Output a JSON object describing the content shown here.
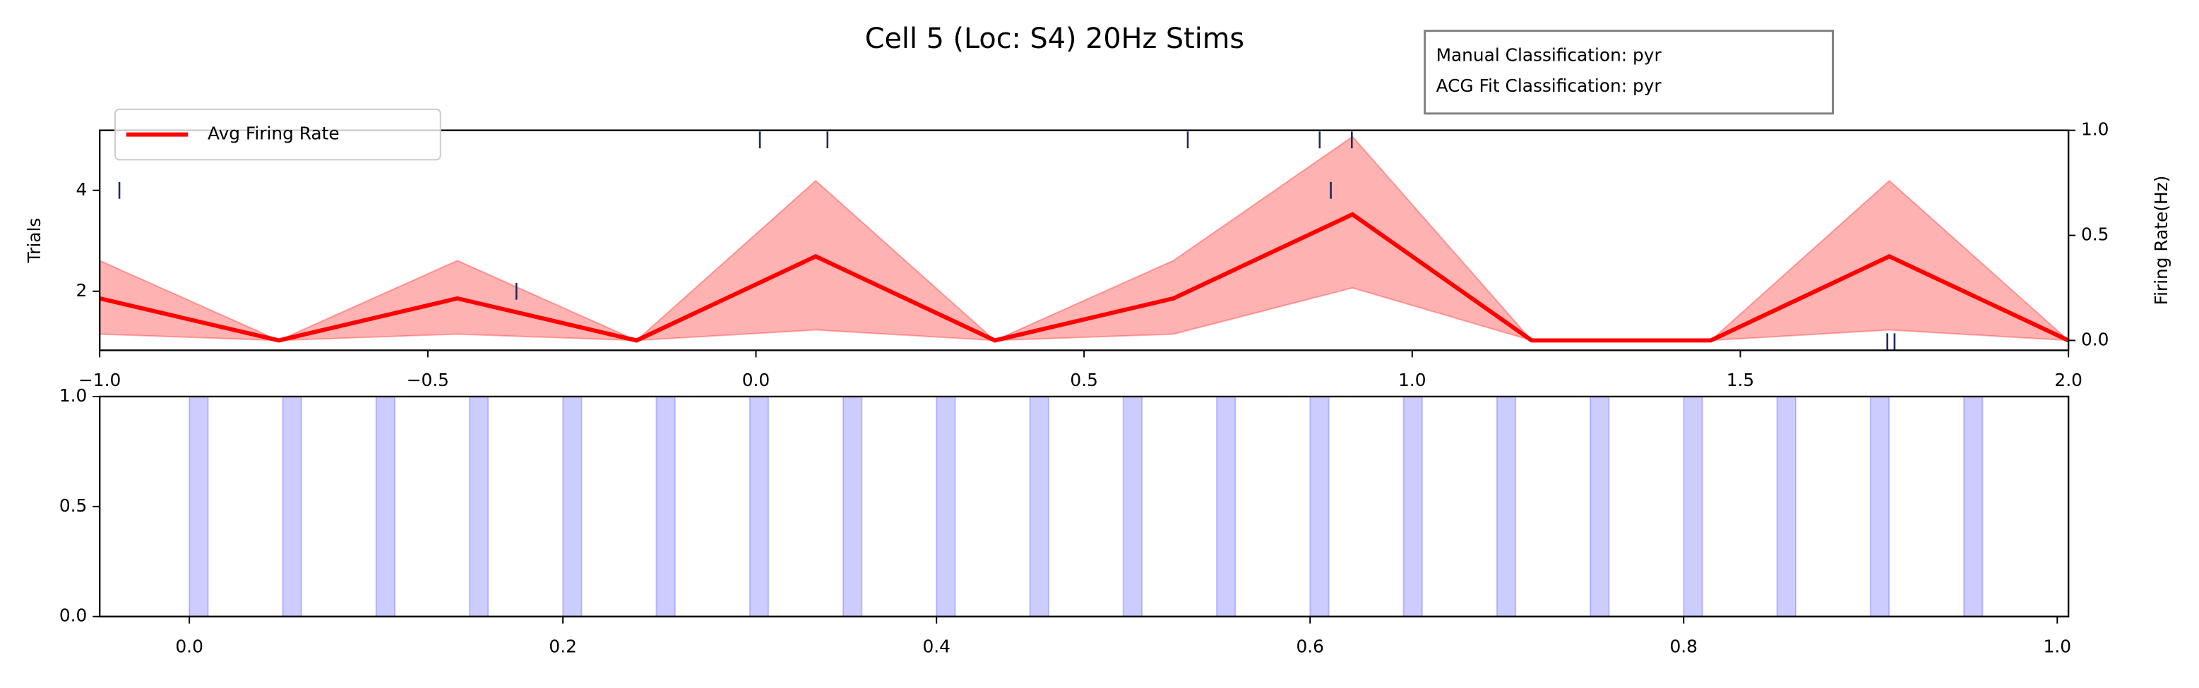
{
  "chart_data": [
    {
      "type": "line",
      "title": "Cell 5 (Loc: S4) 20Hz Stims",
      "annotations": [
        "Manual Classification: pyr",
        "ACG Fit Classification: pyr"
      ],
      "x": [
        -1.0,
        -0.727,
        -0.455,
        -0.182,
        0.091,
        0.364,
        0.636,
        0.909,
        1.182,
        1.455,
        1.727,
        2.0
      ],
      "series": [
        {
          "name": "Avg Firing Rate",
          "color": "#ff0000",
          "axis": "y2",
          "values": [
            0.2,
            0,
            0.2,
            0,
            0.4,
            0,
            0.2,
            0.6,
            0,
            0,
            0.4,
            0
          ],
          "upper": [
            0.38,
            0,
            0.38,
            0,
            0.76,
            0,
            0.38,
            0.97,
            0,
            0,
            0.76,
            0
          ],
          "lower": [
            0.03,
            0,
            0.03,
            0,
            0.05,
            0,
            0.03,
            0.25,
            0,
            0,
            0.05,
            0
          ]
        }
      ],
      "spike_times": [
        -0.97,
        0.876,
        -0.365,
        0.006,
        0.109,
        0.658,
        0.859,
        0.908,
        1.724,
        1.735
      ],
      "spike_trials": [
        4,
        4,
        2,
        5,
        5,
        5,
        5,
        5,
        1,
        1
      ],
      "xlim": [
        -1.0,
        2.0
      ],
      "xticks": [
        {
          "value": -1.0,
          "label": "−1.0"
        },
        {
          "value": -0.5,
          "label": "−0.5"
        },
        {
          "value": 0,
          "label": "0.0"
        },
        {
          "value": 0.5,
          "label": "0.5"
        },
        {
          "value": 1.0,
          "label": "1.0"
        },
        {
          "value": 1.5,
          "label": "1.5"
        },
        {
          "value": 2.0,
          "label": "2.0"
        }
      ],
      "ylabel": "Trials",
      "ylim": [
        0.83,
        5.19
      ],
      "yticks": [
        2,
        4
      ],
      "y2label": "Firing Rate(Hz)",
      "y2lim": [
        -0.047,
        1.0
      ],
      "y2ticks": [
        {
          "value": 0,
          "label": "0.0"
        },
        {
          "value": 0.5,
          "label": "0.5"
        },
        {
          "value": 1.0,
          "label": "1.0"
        }
      ],
      "legend": "upper left"
    },
    {
      "type": "span",
      "xlim": [
        -0.048,
        1.006
      ],
      "xticks": [
        {
          "value": 0,
          "label": "0.0"
        },
        {
          "value": 0.2,
          "label": "0.2"
        },
        {
          "value": 0.4,
          "label": "0.4"
        },
        {
          "value": 0.6,
          "label": "0.6"
        },
        {
          "value": 0.8,
          "label": "0.8"
        },
        {
          "value": 1.0,
          "label": "1.0"
        }
      ],
      "ylim": [
        0,
        1
      ],
      "yticks": [
        {
          "value": 0,
          "label": "0.0"
        },
        {
          "value": 0.5,
          "label": "0.5"
        },
        {
          "value": 1.0,
          "label": "1.0"
        }
      ],
      "color": "#0000ff",
      "span_starts": [
        0,
        0.05,
        0.1,
        0.15,
        0.2,
        0.25,
        0.3,
        0.35,
        0.4,
        0.45,
        0.5,
        0.55,
        0.6,
        0.65,
        0.7,
        0.75,
        0.8,
        0.85,
        0.9,
        0.95
      ],
      "span_ends": [
        0.01,
        0.06,
        0.11,
        0.16,
        0.21,
        0.26,
        0.31,
        0.36,
        0.41,
        0.46,
        0.51,
        0.56,
        0.61,
        0.66,
        0.71,
        0.76,
        0.81,
        0.86,
        0.91,
        0.96
      ]
    }
  ]
}
